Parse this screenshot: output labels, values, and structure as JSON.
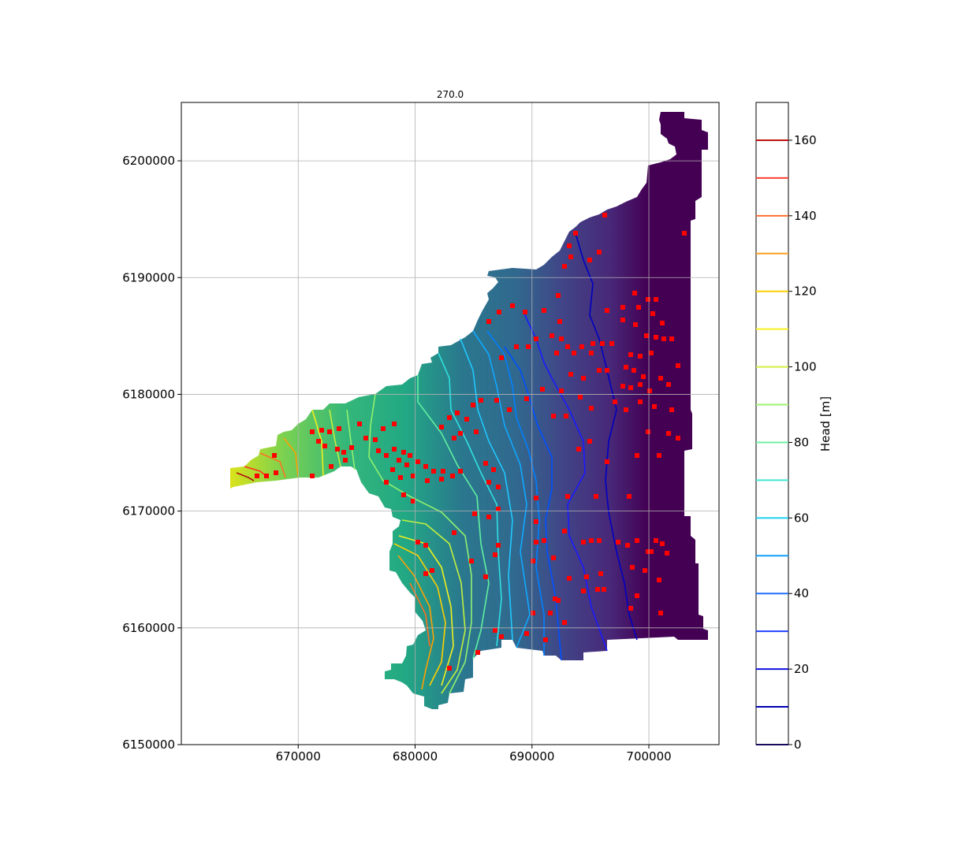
{
  "chart_data": {
    "type": "heatmap",
    "title": "270.0",
    "xlabel": "",
    "ylabel": "",
    "xlim": [
      660000,
      706000
    ],
    "ylim": [
      6150000,
      6205000
    ],
    "x_ticks": [
      "670000",
      "680000",
      "690000",
      "700000"
    ],
    "x_tick_values": [
      670000,
      680000,
      690000,
      700000
    ],
    "y_ticks": [
      "6150000",
      "6160000",
      "6170000",
      "6180000",
      "6190000",
      "6200000"
    ],
    "y_tick_values": [
      6150000,
      6160000,
      6170000,
      6180000,
      6190000,
      6200000
    ],
    "grid": true,
    "colormap": "viridis",
    "contour_colormap": "jet",
    "colorbar": {
      "label": "Head [m]",
      "range": [
        0,
        170
      ],
      "ticks": [
        "0",
        "20",
        "40",
        "60",
        "80",
        "100",
        "120",
        "140",
        "160"
      ],
      "tick_values": [
        0,
        20,
        40,
        60,
        80,
        100,
        120,
        140,
        160
      ],
      "contour_levels": [
        0,
        10,
        20,
        30,
        40,
        50,
        60,
        70,
        80,
        90,
        100,
        110,
        120,
        130,
        140,
        150,
        160
      ]
    },
    "marker_color": "#ff0000",
    "markers_description": "well locations (red squares)"
  }
}
